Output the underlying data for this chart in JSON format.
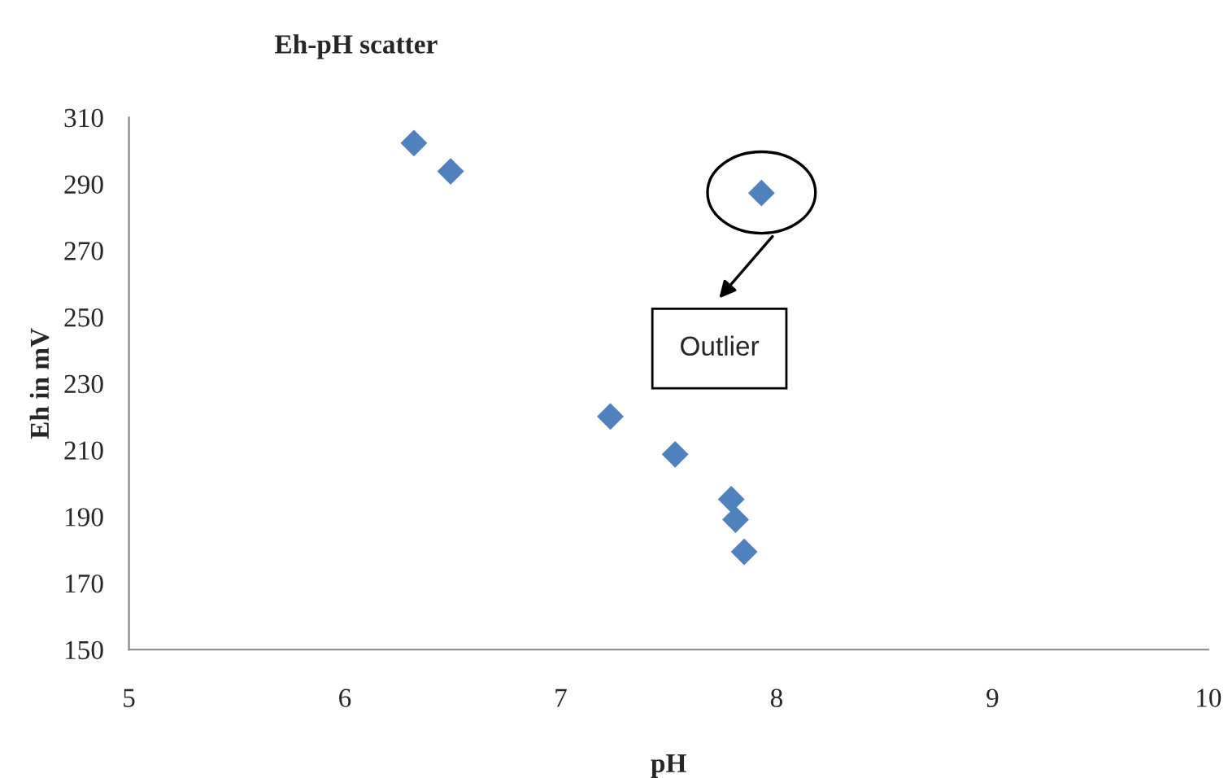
{
  "chart_data": {
    "type": "scatter",
    "title": "Eh-pH scatter",
    "xlabel": "pH",
    "ylabel": "Eh in mV",
    "x": [
      6.32,
      6.49,
      7.93,
      7.23,
      7.53,
      7.79,
      7.81,
      7.85
    ],
    "values": [
      302.3,
      293.8,
      287.3,
      220.1,
      208.7,
      195.2,
      189.1,
      179.4
    ],
    "color": "#4f81bd",
    "marker": "diamond",
    "grid": false,
    "legend": false,
    "xlim": [
      5,
      10
    ],
    "xticks": [
      5,
      6,
      7,
      8,
      9,
      10
    ],
    "ylim": [
      150,
      310
    ],
    "yticks": [
      150,
      170,
      190,
      210,
      230,
      250,
      270,
      290,
      310
    ],
    "annotations": [
      "Outlier"
    ]
  }
}
